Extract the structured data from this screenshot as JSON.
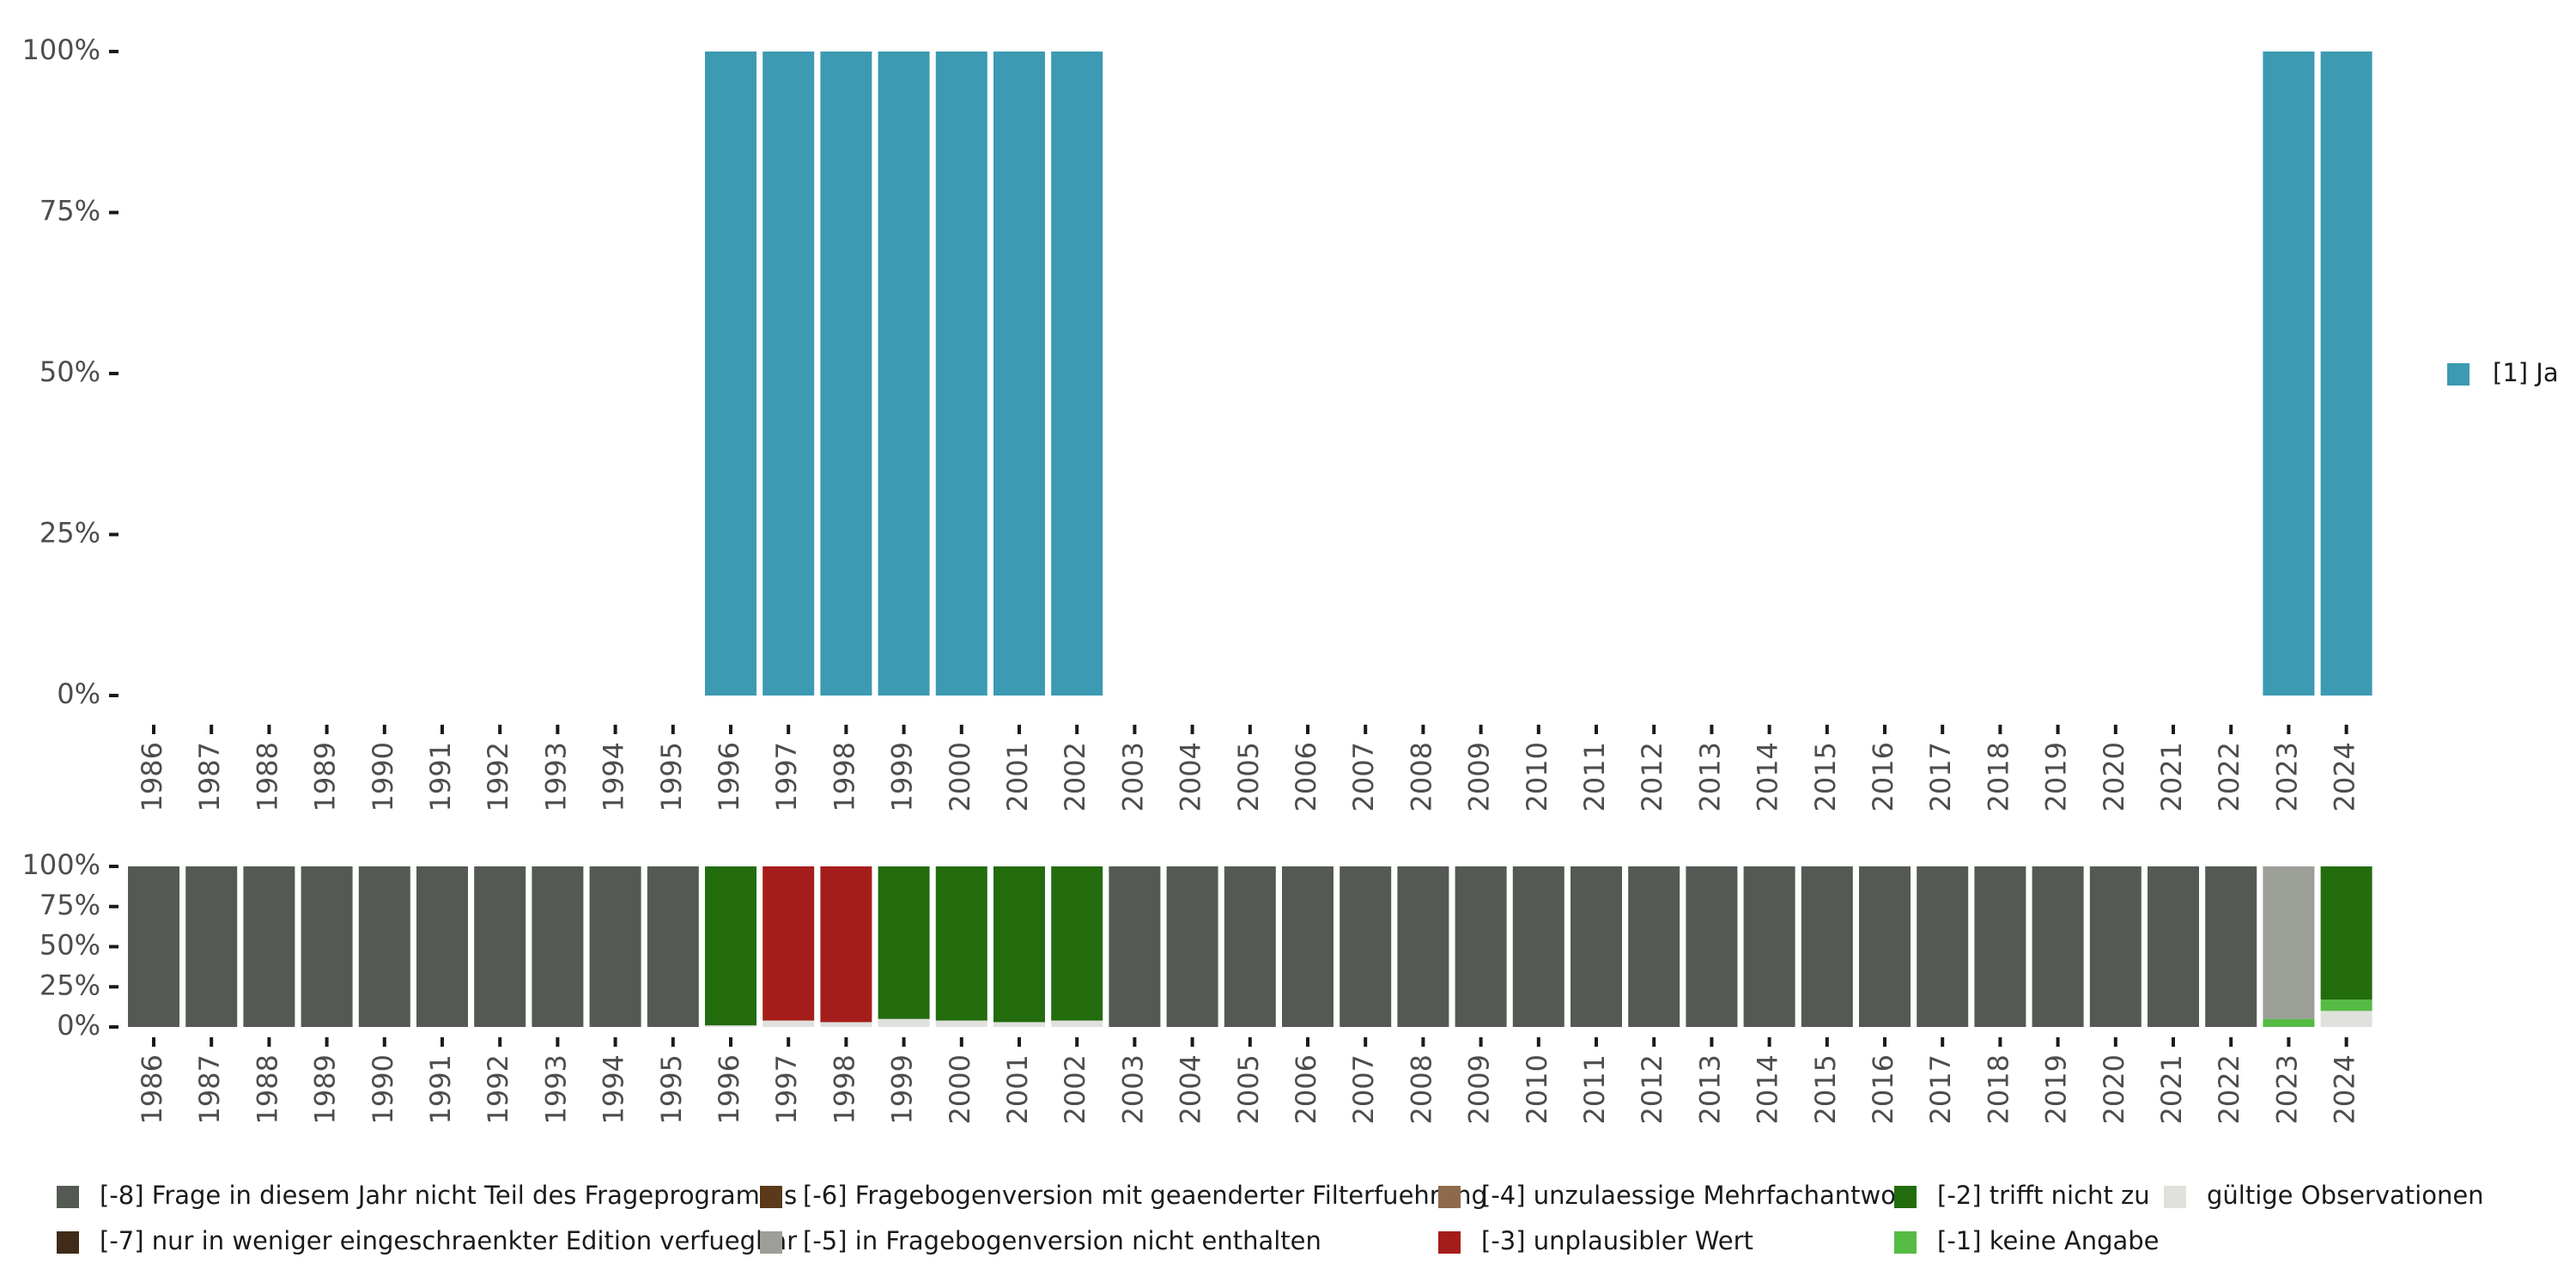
{
  "chart_data": [
    {
      "type": "bar",
      "stacked": true,
      "title": "",
      "xlabel": "",
      "ylabel": "",
      "ylim": [
        0,
        100
      ],
      "y_ticks": [
        "0%",
        "25%",
        "50%",
        "75%",
        "100%"
      ],
      "categories": [
        "1986",
        "1987",
        "1988",
        "1989",
        "1990",
        "1991",
        "1992",
        "1993",
        "1994",
        "1995",
        "1996",
        "1997",
        "1998",
        "1999",
        "2000",
        "2001",
        "2002",
        "2003",
        "2004",
        "2005",
        "2006",
        "2007",
        "2008",
        "2009",
        "2010",
        "2011",
        "2012",
        "2013",
        "2014",
        "2015",
        "2016",
        "2017",
        "2018",
        "2019",
        "2020",
        "2021",
        "2022",
        "2023",
        "2024"
      ],
      "series": [
        {
          "name": "[1] Ja",
          "color": "#3c9ab2",
          "values": [
            null,
            null,
            null,
            null,
            null,
            null,
            null,
            null,
            null,
            null,
            100,
            100,
            100,
            100,
            100,
            100,
            100,
            null,
            null,
            null,
            null,
            null,
            null,
            null,
            null,
            null,
            null,
            null,
            null,
            null,
            null,
            null,
            null,
            null,
            null,
            null,
            null,
            100,
            100
          ]
        }
      ],
      "legend": {
        "position": "right",
        "items": [
          {
            "label": "[1] Ja",
            "color": "#3c9ab2"
          }
        ]
      }
    },
    {
      "type": "bar",
      "stacked": true,
      "title": "",
      "xlabel": "",
      "ylabel": "",
      "ylim": [
        0,
        100
      ],
      "y_ticks": [
        "0%",
        "25%",
        "50%",
        "75%",
        "100%"
      ],
      "categories": [
        "1986",
        "1987",
        "1988",
        "1989",
        "1990",
        "1991",
        "1992",
        "1993",
        "1994",
        "1995",
        "1996",
        "1997",
        "1998",
        "1999",
        "2000",
        "2001",
        "2002",
        "2003",
        "2004",
        "2005",
        "2006",
        "2007",
        "2008",
        "2009",
        "2010",
        "2011",
        "2012",
        "2013",
        "2014",
        "2015",
        "2016",
        "2017",
        "2018",
        "2019",
        "2020",
        "2021",
        "2022",
        "2023",
        "2024"
      ],
      "series": [
        {
          "name": "gültige Observationen",
          "color": "#e0e1dd",
          "values": [
            0,
            0,
            0,
            0,
            0,
            0,
            0,
            0,
            0,
            0,
            1,
            4,
            3,
            5,
            4,
            3,
            4,
            0,
            0,
            0,
            0,
            0,
            0,
            0,
            0,
            0,
            0,
            0,
            0,
            0,
            0,
            0,
            0,
            0,
            0,
            0,
            0,
            0,
            10
          ]
        },
        {
          "name": "[-1] keine Angabe",
          "color": "#55bb44",
          "values": [
            0,
            0,
            0,
            0,
            0,
            0,
            0,
            0,
            0,
            0,
            0,
            0,
            0,
            0,
            0,
            0,
            0,
            0,
            0,
            0,
            0,
            0,
            0,
            0,
            0,
            0,
            0,
            0,
            0,
            0,
            0,
            0,
            0,
            0,
            0,
            0,
            0,
            5,
            7
          ]
        },
        {
          "name": "[-3] unplausibler Wert",
          "color": "#a51d1a",
          "values": [
            0,
            0,
            0,
            0,
            0,
            0,
            0,
            0,
            0,
            0,
            0,
            96,
            97,
            0,
            0,
            0,
            0,
            0,
            0,
            0,
            0,
            0,
            0,
            0,
            0,
            0,
            0,
            0,
            0,
            0,
            0,
            0,
            0,
            0,
            0,
            0,
            0,
            0,
            0
          ]
        },
        {
          "name": "[-2] trifft nicht zu",
          "color": "#226c0e",
          "values": [
            0,
            0,
            0,
            0,
            0,
            0,
            0,
            0,
            0,
            0,
            99,
            0,
            0,
            95,
            96,
            97,
            96,
            0,
            0,
            0,
            0,
            0,
            0,
            0,
            0,
            0,
            0,
            0,
            0,
            0,
            0,
            0,
            0,
            0,
            0,
            0,
            0,
            0,
            83
          ]
        },
        {
          "name": "[-5] in Fragebogenversion nicht enthalten",
          "color": "#9c9e98",
          "values": [
            0,
            0,
            0,
            0,
            0,
            0,
            0,
            0,
            0,
            0,
            0,
            0,
            0,
            0,
            0,
            0,
            0,
            0,
            0,
            0,
            0,
            0,
            0,
            0,
            0,
            0,
            0,
            0,
            0,
            0,
            0,
            0,
            0,
            0,
            0,
            0,
            0,
            95,
            0
          ]
        },
        {
          "name": "[-8] Frage in diesem Jahr nicht Teil des Frageprogramms",
          "color": "#545a53",
          "values": [
            100,
            100,
            100,
            100,
            100,
            100,
            100,
            100,
            100,
            100,
            0,
            0,
            0,
            0,
            0,
            0,
            0,
            100,
            100,
            100,
            100,
            100,
            100,
            100,
            100,
            100,
            100,
            100,
            100,
            100,
            100,
            100,
            100,
            100,
            100,
            100,
            100,
            0,
            0
          ]
        }
      ],
      "legend": {
        "position": "bottom",
        "items": [
          {
            "label": "[-8] Frage in diesem Jahr nicht Teil des Frageprogramms",
            "color": "#545a53"
          },
          {
            "label": "[-7] nur in weniger eingeschraenkter Edition verfuegbar",
            "color": "#3f2b17"
          },
          {
            "label": "[-6] Fragebogenversion mit geaenderter Filterfuehrung",
            "color": "#5a3a19"
          },
          {
            "label": "[-5] in Fragebogenversion nicht enthalten",
            "color": "#9c9e98"
          },
          {
            "label": "[-4] unzulaessige Mehrfachantwort",
            "color": "#8e6a4c"
          },
          {
            "label": "[-3] unplausibler Wert",
            "color": "#a51d1a"
          },
          {
            "label": "[-2] trifft nicht zu",
            "color": "#226c0e"
          },
          {
            "label": "[-1] keine Angabe",
            "color": "#55bb44"
          },
          {
            "label": "gültige Observationen",
            "color": "#e0e1dd"
          }
        ]
      }
    }
  ]
}
